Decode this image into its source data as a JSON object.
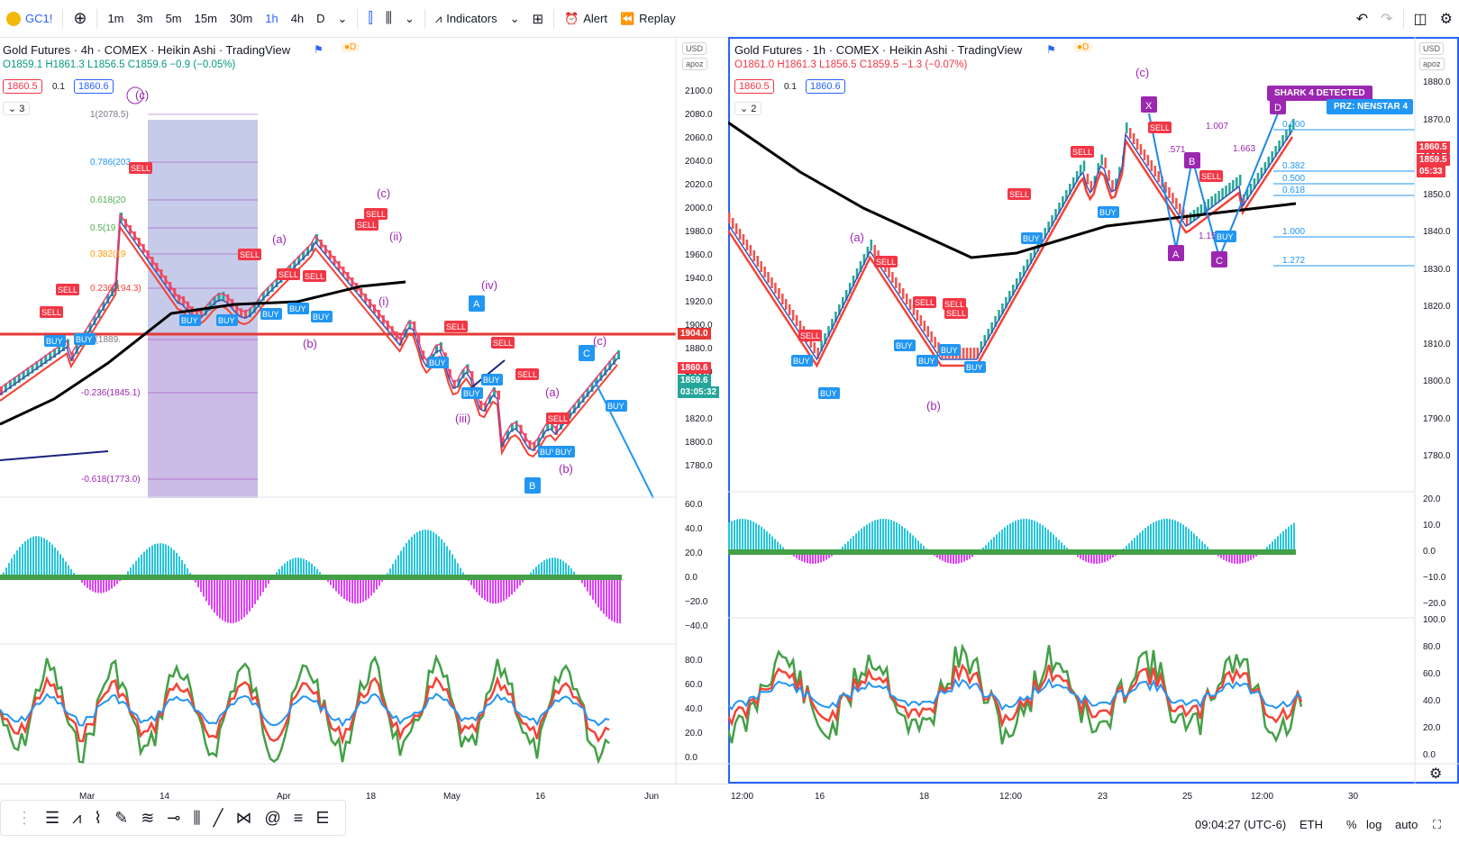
{
  "topbar": {
    "symbol": "GC1!",
    "intervals": [
      "1m",
      "3m",
      "5m",
      "15m",
      "30m",
      "1h",
      "4h",
      "D"
    ],
    "active_interval": "1h",
    "indicators_label": "Indicators",
    "alert_label": "Alert",
    "replay_label": "Replay"
  },
  "left_pane": {
    "title": "Gold Futures · 4h · COMEX · Heikin Ashi · TradingView",
    "ohlc": "O1859.1 H1861.3 L1856.5 C1859.6 −0.9 (−0.05%)",
    "sell_price": "1860.5",
    "step": "0.1",
    "buy_price": "1860.6",
    "indicator_count": "3",
    "currency": "USD",
    "scale_mode": "apoz",
    "price_ticks": [
      "2100.0",
      "2080.0",
      "2060.0",
      "2040.0",
      "2020.0",
      "2000.0",
      "1980.0",
      "1960.0",
      "1940.0",
      "1920.0",
      "1900.0",
      "1880.0",
      "1860.0",
      "1840.0",
      "1820.0",
      "1800.0",
      "1780.0"
    ],
    "line_label": "1904.0",
    "last_price": "1860.6",
    "current_price": "1859.6",
    "countdown": "03:05:32",
    "osc1_ticks": [
      "60.0",
      "40.0",
      "20.0",
      "0.0",
      "−20.0",
      "−40.0"
    ],
    "osc2_ticks": [
      "80.0",
      "60.0",
      "40.0",
      "20.0",
      "0.0"
    ],
    "time_ticks": [
      "Mar",
      "14",
      "Apr",
      "18",
      "May",
      "16",
      "Jun"
    ],
    "fib_levels": [
      "1(2078.5)",
      "0.786(203",
      "0.618(20",
      "0.5(19",
      "0.382(19",
      "0.236(194.3)",
      "0(1889.",
      "-0.236(1845.1)",
      "-0.618(1773.0)"
    ],
    "wave_labels": [
      "(c)",
      "(a)",
      "(c)",
      "(ii)",
      "(i)",
      "(b)",
      "(iv)",
      "(iii)",
      "(a)",
      "(b)",
      "(c)"
    ],
    "point_labels": [
      "A",
      "B",
      "C"
    ]
  },
  "right_pane": {
    "title": "Gold Futures · 1h · COMEX · Heikin Ashi · TradingView",
    "ohlc": "O1861.0 H1861.3 L1856.5 C1859.5 −1.3 (−0.07%)",
    "sell_price": "1860.5",
    "step": "0.1",
    "buy_price": "1860.6",
    "indicator_count": "2",
    "currency": "USD",
    "scale_mode": "apoz",
    "price_ticks": [
      "1880.0",
      "1870.0",
      "1860.0",
      "1850.0",
      "1840.0",
      "1830.0",
      "1820.0",
      "1810.0",
      "1800.0",
      "1790.0",
      "1780.0"
    ],
    "last_price": "1860.5",
    "current_price": "1859.5",
    "countdown": "05:33",
    "osc1_ticks": [
      "20.0",
      "10.0",
      "0.0",
      "−10.0",
      "−20.0"
    ],
    "osc2_ticks": [
      "100.0",
      "80.0",
      "60.0",
      "40.0",
      "20.0",
      "0.0"
    ],
    "time_ticks": [
      "12:00",
      "16",
      "18",
      "12:00",
      "23",
      "25",
      "12:00",
      "30"
    ],
    "shark_label": "SHARK 4 DETECTED",
    "prz_label": "PRZ: NENSTAR 4",
    "harmonic_labels": [
      "X",
      "A",
      "B",
      "C",
      "D"
    ],
    "ratio_labels": [
      "1.007",
      "1.663",
      ".571",
      "1.15"
    ],
    "fib_right": [
      "0.000",
      "0.382",
      "0.500",
      "0.618",
      "1.000",
      "1.272"
    ],
    "wave_labels": [
      "(c)",
      "(a)",
      "(b)"
    ]
  },
  "bottombar": {
    "clock": "09:04:27 (UTC-6)",
    "session": "ETH",
    "pct_label": "%",
    "log_label": "log",
    "auto_label": "auto"
  },
  "colors": {
    "sell": "#f23645",
    "buy": "#2196f3",
    "wave": "#9c27b0",
    "ema_black": "#000000",
    "ema_red": "#f44336",
    "ema_blue": "#3f51b5",
    "osc_pos": "#26c6da",
    "osc_neg": "#e040fb",
    "rsi_green": "#43a047"
  }
}
